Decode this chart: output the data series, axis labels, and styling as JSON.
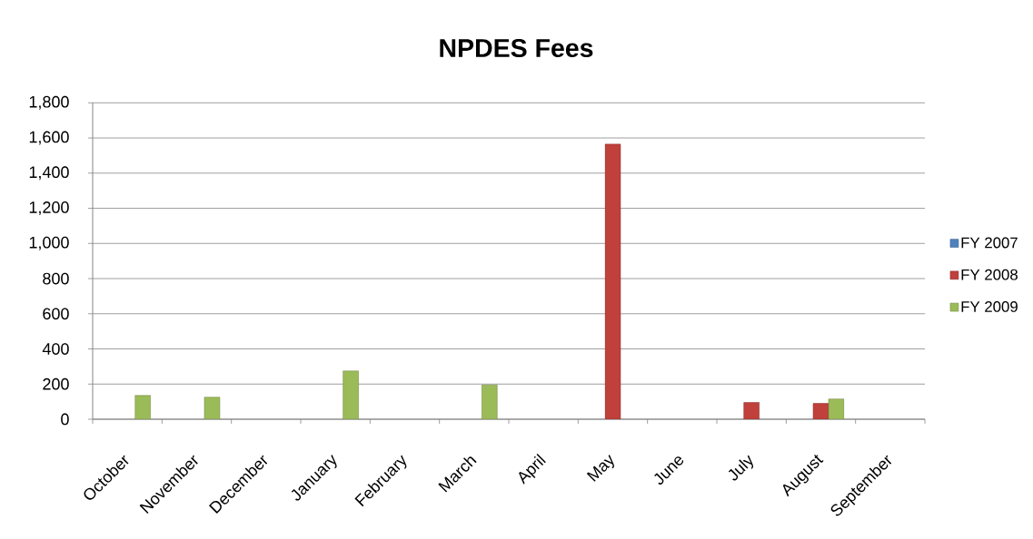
{
  "chart_data": {
    "type": "bar",
    "title": "NPDES Fees",
    "categories": [
      "October",
      "November",
      "December",
      "January",
      "February",
      "March",
      "April",
      "May",
      "June",
      "July",
      "August",
      "September"
    ],
    "series": [
      {
        "name": "FY 2007",
        "color": "#4f81bd",
        "values": [
          null,
          null,
          null,
          null,
          null,
          null,
          null,
          null,
          null,
          null,
          null,
          null
        ]
      },
      {
        "name": "FY 2008",
        "color": "#c0403c",
        "values": [
          null,
          null,
          null,
          null,
          null,
          null,
          null,
          1565,
          null,
          95,
          90,
          null
        ]
      },
      {
        "name": "FY 2009",
        "color": "#9bbb59",
        "values": [
          135,
          125,
          null,
          275,
          null,
          195,
          null,
          null,
          null,
          null,
          115,
          null
        ]
      }
    ],
    "ylim": [
      0,
      1800
    ],
    "yticks": [
      0,
      200,
      400,
      600,
      800,
      {
        "value": 1000,
        "label": "1,000"
      },
      {
        "value": 1200,
        "label": "1,200"
      },
      {
        "value": 1400,
        "label": "1,400"
      },
      {
        "value": 1600,
        "label": "1,600"
      },
      {
        "value": 1800,
        "label": "1,800"
      }
    ],
    "grid": "y",
    "legend": "right"
  }
}
